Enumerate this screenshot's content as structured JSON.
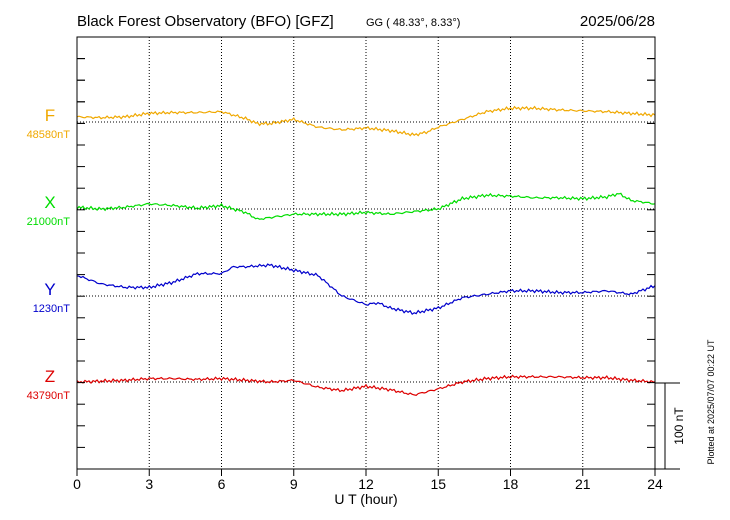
{
  "header": {
    "title": "Black Forest Observatory (BFO)  [GFZ]",
    "coords": "GG ( 48.33°,   8.33°)",
    "date": "2025/06/28"
  },
  "plotted_note": "Plotted at 2025/07/07 00:22 UT",
  "scale_label": "100 nT",
  "chart_data": {
    "type": "line",
    "xlabel": "U T (hour)",
    "xlim": [
      0,
      24
    ],
    "x_ticks": [
      "0",
      "3",
      "6",
      "9",
      "12",
      "15",
      "18",
      "21",
      "24"
    ],
    "grid": true,
    "scale_bar_nT": 100,
    "series": [
      {
        "name": "F",
        "baseline": "48580nT",
        "color": "#f0a800",
        "x": [
          0,
          1,
          2,
          3,
          4,
          5,
          6,
          7,
          7.5,
          8,
          9,
          10,
          11,
          12,
          13,
          14,
          14.5,
          15,
          16,
          17,
          18,
          19,
          20,
          21,
          22,
          23,
          24
        ],
        "values": [
          6,
          5,
          6,
          10,
          11,
          11,
          12,
          4,
          -2,
          -2,
          3,
          -6,
          -9,
          -7,
          -10,
          -15,
          -12,
          -6,
          3,
          12,
          16,
          16,
          14,
          13,
          12,
          10,
          8
        ]
      },
      {
        "name": "X",
        "baseline": "21000nT",
        "color": "#00dd00",
        "x": [
          0,
          1,
          2,
          3,
          4,
          5,
          6,
          7,
          7.5,
          8,
          9,
          10,
          11,
          12,
          13,
          14,
          15,
          16,
          17,
          18,
          19,
          20,
          21,
          22,
          22.5,
          23,
          24
        ],
        "values": [
          2,
          0,
          2,
          6,
          4,
          1,
          4,
          -4,
          -12,
          -10,
          -6,
          -6,
          -6,
          -4,
          -6,
          -3,
          0,
          12,
          16,
          15,
          13,
          13,
          12,
          14,
          18,
          10,
          6
        ]
      },
      {
        "name": "Y",
        "baseline": "1230nT",
        "color": "#0000cc",
        "x": [
          0,
          1,
          2,
          3,
          4,
          5,
          6,
          6.5,
          7,
          8,
          9,
          10,
          11,
          12,
          12.5,
          13,
          14,
          15,
          16,
          17,
          18,
          19,
          20,
          21,
          22,
          23,
          24
        ],
        "values": [
          24,
          14,
          10,
          10,
          16,
          26,
          26,
          34,
          34,
          36,
          30,
          24,
          0,
          -10,
          -8,
          -14,
          -20,
          -14,
          -2,
          2,
          6,
          6,
          4,
          4,
          6,
          2,
          12
        ]
      },
      {
        "name": "Z",
        "baseline": "43790nT",
        "color": "#dd0000",
        "x": [
          0,
          2,
          3,
          4,
          5,
          6,
          7,
          8,
          9,
          10,
          11,
          12,
          13,
          14,
          15,
          16,
          17,
          18,
          19,
          20,
          21,
          22,
          23,
          24
        ],
        "values": [
          0,
          2,
          4,
          4,
          3,
          4,
          2,
          0,
          2,
          -6,
          -10,
          -5,
          -9,
          -15,
          -8,
          0,
          4,
          6,
          6,
          6,
          5,
          5,
          2,
          0
        ]
      }
    ]
  }
}
